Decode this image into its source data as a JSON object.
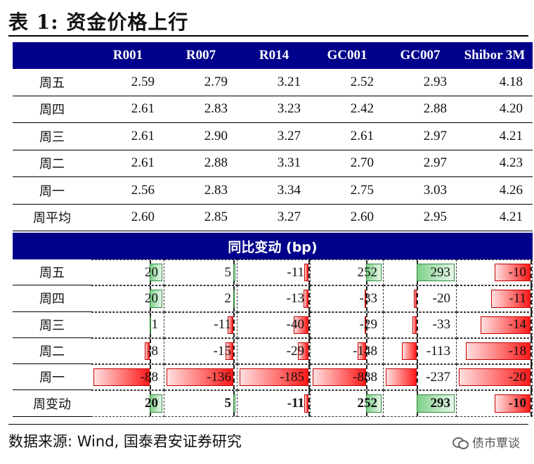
{
  "title": "表 1:  资金价格上行",
  "columns": [
    "R001",
    "R007",
    "R014",
    "GC001",
    "GC007",
    "Shibor 3M"
  ],
  "rate_rows": [
    {
      "label": "周五",
      "values": [
        "2.59",
        "2.79",
        "3.21",
        "2.52",
        "2.93",
        "4.18"
      ]
    },
    {
      "label": "周四",
      "values": [
        "2.61",
        "2.83",
        "3.23",
        "2.42",
        "2.88",
        "4.20"
      ]
    },
    {
      "label": "周三",
      "values": [
        "2.61",
        "2.90",
        "3.27",
        "2.61",
        "2.97",
        "4.21"
      ]
    },
    {
      "label": "周二",
      "values": [
        "2.61",
        "2.88",
        "3.31",
        "2.70",
        "2.97",
        "4.23"
      ]
    },
    {
      "label": "周一",
      "values": [
        "2.56",
        "2.83",
        "3.34",
        "2.75",
        "3.03",
        "4.26"
      ]
    },
    {
      "label": "周平均",
      "values": [
        "2.60",
        "2.85",
        "3.27",
        "2.60",
        "2.95",
        "4.21"
      ]
    }
  ],
  "change_section_title": "同比变动 (bp)",
  "change_rows": [
    {
      "label": "周五",
      "values": [
        20,
        5,
        -11,
        252,
        293,
        -10
      ]
    },
    {
      "label": "周四",
      "values": [
        20,
        2,
        -13,
        -33,
        -20,
        -11
      ]
    },
    {
      "label": "周三",
      "values": [
        1,
        -11,
        -40,
        -29,
        -33,
        -14
      ]
    },
    {
      "label": "周二",
      "values": [
        -8,
        -15,
        -29,
        -148,
        -113,
        -18
      ]
    },
    {
      "label": "周一",
      "values": [
        -88,
        -136,
        -185,
        -888,
        -237,
        -20
      ]
    },
    {
      "label": "周变动",
      "values": [
        20,
        5,
        -11,
        252,
        293,
        -10
      ],
      "bold": true
    }
  ],
  "bar_colors": {
    "positive": "#7fd08a",
    "negative": "#ff1a1a"
  },
  "source": "数据来源: Wind, 国泰君安证券研究",
  "watermark": "债市覃谈",
  "watermark_icon": "wechat-icon"
}
